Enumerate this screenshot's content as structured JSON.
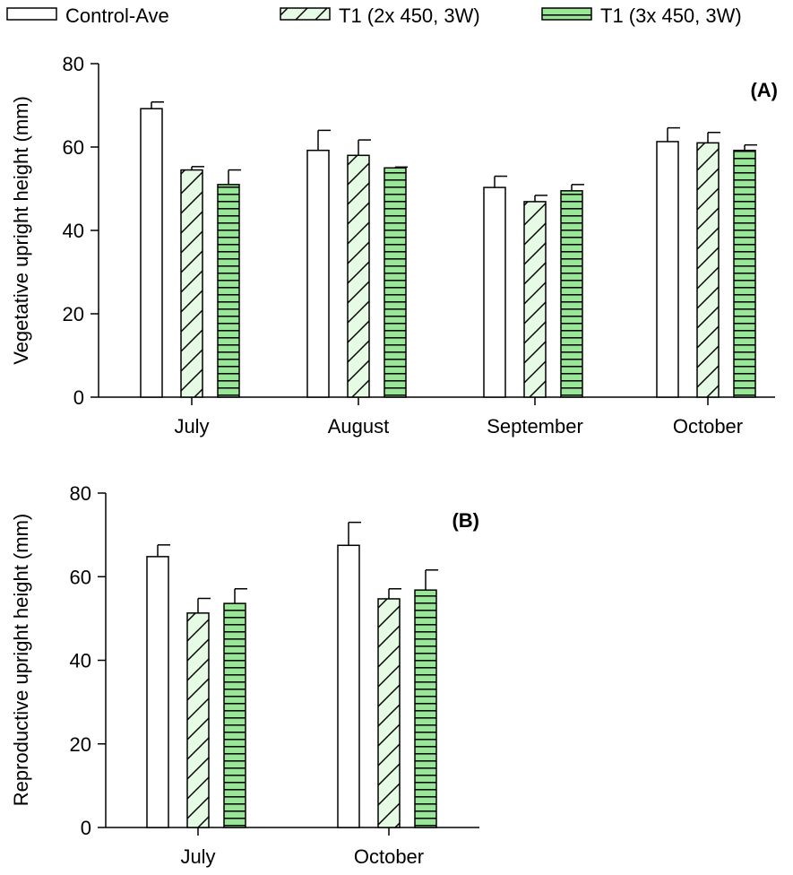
{
  "legend": [
    {
      "name": "Control-Ave",
      "pattern": "none"
    },
    {
      "name": "T1 (2x 450, 3W)",
      "pattern": "diagonal"
    },
    {
      "name": "T1 (3x 450, 3W)",
      "pattern": "horizontal"
    }
  ],
  "colors": {
    "control_fill": "#ffffff",
    "t1_2x_fill": "#e6fbe3",
    "t1_3x_fill": "#99e699",
    "stroke": "#000000"
  },
  "chart_data": [
    {
      "type": "bar",
      "panel_label": "(A)",
      "ylabel": "Vegetative upright height (mm)",
      "xlabel": "",
      "ylim": [
        0,
        80
      ],
      "yticks": [
        0,
        20,
        40,
        60,
        80
      ],
      "categories": [
        "July",
        "August",
        "September",
        "October"
      ],
      "series": [
        {
          "name": "Control-Ave",
          "values": [
            69.2,
            59.2,
            50.3,
            61.3
          ],
          "errors": [
            1.6,
            4.8,
            2.7,
            3.3
          ]
        },
        {
          "name": "T1 (2x 450, 3W)",
          "values": [
            54.5,
            58.0,
            46.9,
            61.0
          ],
          "errors": [
            0.8,
            3.7,
            1.5,
            2.5
          ]
        },
        {
          "name": "T1 (3x 450, 3W)",
          "values": [
            51.0,
            55.0,
            49.5,
            59.2
          ],
          "errors": [
            3.5,
            0.2,
            1.5,
            1.3
          ]
        }
      ],
      "legend": "top",
      "grid": false
    },
    {
      "type": "bar",
      "panel_label": "(B)",
      "ylabel": "Reproductive upright height (mm)",
      "xlabel": "",
      "ylim": [
        0,
        80
      ],
      "yticks": [
        0,
        20,
        40,
        60,
        80
      ],
      "categories": [
        "July",
        "October"
      ],
      "series": [
        {
          "name": "Control-Ave",
          "values": [
            64.8,
            67.5
          ],
          "errors": [
            2.8,
            5.5
          ]
        },
        {
          "name": "T1 (2x 450, 3W)",
          "values": [
            51.3,
            54.7
          ],
          "errors": [
            3.5,
            2.4
          ]
        },
        {
          "name": "T1 (3x 450, 3W)",
          "values": [
            53.6,
            56.8
          ],
          "errors": [
            3.5,
            4.8
          ]
        }
      ],
      "legend": "top",
      "grid": false
    }
  ]
}
